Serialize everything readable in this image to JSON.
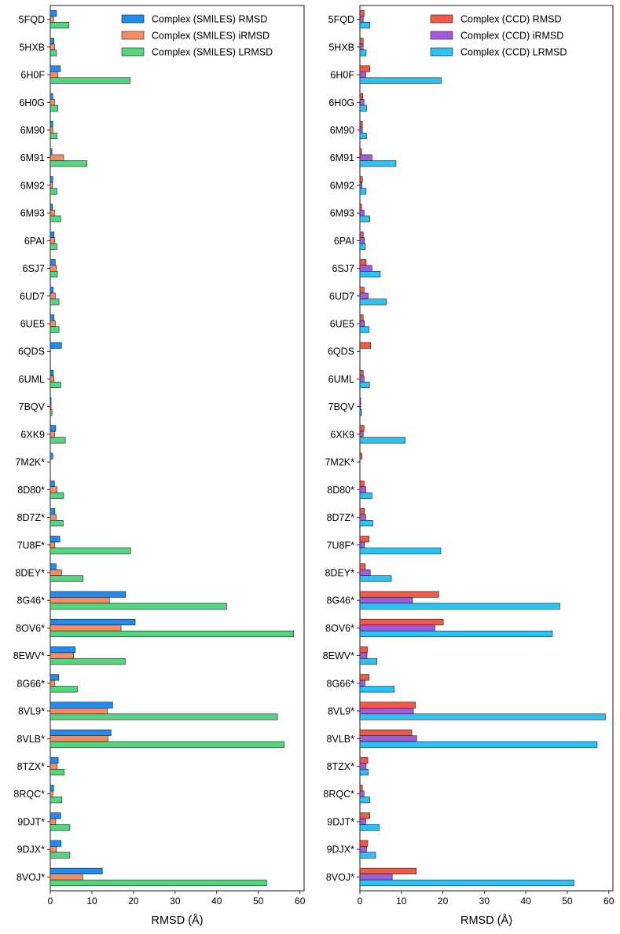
{
  "chart_data": [
    {
      "type": "bar",
      "orientation": "horizontal",
      "title": "",
      "xlabel": "RMSD (Å)",
      "ylabel": "",
      "xlim": [
        0,
        61
      ],
      "xticks": [
        0,
        10,
        20,
        30,
        40,
        50,
        60
      ],
      "legend_position": "top-right",
      "categories": [
        "5FQD",
        "5HXB",
        "6H0F",
        "6H0G",
        "6M90",
        "6M91",
        "6M92",
        "6M93",
        "6PAI",
        "6SJ7",
        "6UD7",
        "6UE5",
        "6QDS",
        "6UML",
        "7BQV",
        "6XK9",
        "7M2K*",
        "8D80*",
        "8D7Z*",
        "7U8F*",
        "8DEY*",
        "8G46*",
        "8OV6*",
        "8EWV*",
        "8G66*",
        "8VL9*",
        "8VLB*",
        "8TZX*",
        "8RQC*",
        "9DJT*",
        "9DJX*",
        "8VOJ*"
      ],
      "series": [
        {
          "name": "Complex (SMILES) RMSD",
          "color": "#1e8cf0",
          "values": [
            1.5,
            0.9,
            2.4,
            0.6,
            0.6,
            0.4,
            0.6,
            0.5,
            0.9,
            1.2,
            0.7,
            0.9,
            2.7,
            0.7,
            0.2,
            1.3,
            0.6,
            1.0,
            1.1,
            2.3,
            1.4,
            18.1,
            20.4,
            6.0,
            2.0,
            15.0,
            14.6,
            1.9,
            0.8,
            2.5,
            2.6,
            12.5
          ]
        },
        {
          "name": "Complex (SMILES) iRMSD",
          "color": "#fa8a64",
          "values": [
            0.8,
            1.0,
            1.8,
            1.0,
            0.6,
            3.2,
            0.5,
            1.0,
            1.1,
            1.5,
            1.2,
            1.2,
            0,
            0.9,
            0.2,
            1.0,
            0,
            1.6,
            1.4,
            1.1,
            2.7,
            14.2,
            17.0,
            5.6,
            1.0,
            13.7,
            13.9,
            1.6,
            0.6,
            1.3,
            1.5,
            7.8
          ]
        },
        {
          "name": "Complex (SMILES) LRMSD",
          "color": "#52d67e",
          "values": [
            4.5,
            1.5,
            19.2,
            1.8,
            1.6,
            8.8,
            1.6,
            2.5,
            1.6,
            1.7,
            2.1,
            2.1,
            0,
            2.5,
            0.4,
            3.6,
            0,
            3.2,
            3.1,
            19.3,
            7.9,
            42.4,
            58.5,
            18.0,
            6.5,
            54.6,
            56.2,
            3.3,
            2.8,
            4.7,
            4.7,
            52.0
          ]
        }
      ]
    },
    {
      "type": "bar",
      "orientation": "horizontal",
      "title": "",
      "xlabel": "RMSD (Å)",
      "ylabel": "",
      "xlim": [
        0,
        61
      ],
      "xticks": [
        0,
        10,
        20,
        30,
        40,
        50,
        60
      ],
      "legend_position": "top-right",
      "categories": [
        "5FQD",
        "5HXB",
        "6H0F",
        "6H0G",
        "6M90",
        "6M91",
        "6M92",
        "6M93",
        "6PAI",
        "6SJ7",
        "6UD7",
        "6UE5",
        "6QDS",
        "6UML",
        "7BQV",
        "6XK9",
        "7M2K*",
        "8D80*",
        "8D7Z*",
        "7U8F*",
        "8DEY*",
        "8G46*",
        "8OV6*",
        "8EWV*",
        "8G66*",
        "8VL9*",
        "8VLB*",
        "8TZX*",
        "8RQC*",
        "9DJT*",
        "9DJX*",
        "8VOJ*"
      ],
      "series": [
        {
          "name": "Complex (CCD) RMSD",
          "color": "#f05a46",
          "values": [
            1.0,
            0.8,
            2.4,
            0.7,
            0.6,
            0.4,
            0.6,
            0.4,
            0.8,
            1.5,
            1.0,
            0.8,
            2.6,
            0.8,
            0.2,
            1.0,
            0.5,
            1.0,
            1.1,
            2.2,
            1.3,
            19.0,
            20.1,
            1.8,
            2.2,
            13.4,
            12.5,
            1.9,
            0.6,
            2.4,
            1.9,
            13.6
          ]
        },
        {
          "name": "Complex (CCD) iRMSD",
          "color": "#a35adc",
          "values": [
            0.8,
            0.8,
            1.4,
            1.0,
            0.6,
            2.9,
            0.5,
            1.0,
            1.1,
            2.9,
            2.0,
            1.1,
            0,
            1.0,
            0.2,
            0.8,
            0,
            1.4,
            1.4,
            1.1,
            2.5,
            12.7,
            18.1,
            1.7,
            1.2,
            12.9,
            13.7,
            1.5,
            1.0,
            1.4,
            1.6,
            7.8
          ]
        },
        {
          "name": "Complex (CCD) LRMSD",
          "color": "#28c4f8",
          "values": [
            2.4,
            1.5,
            19.6,
            1.6,
            1.6,
            8.7,
            1.5,
            2.4,
            1.3,
            4.9,
            6.4,
            2.2,
            0,
            2.3,
            0.4,
            10.9,
            0,
            2.9,
            3.1,
            19.5,
            7.6,
            48.2,
            46.4,
            4.1,
            8.3,
            59.2,
            57.2,
            2.0,
            2.4,
            4.7,
            3.8,
            51.6
          ]
        }
      ]
    }
  ]
}
